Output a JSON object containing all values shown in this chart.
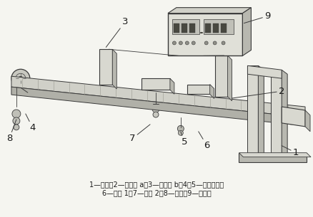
{
  "caption_line1": "1—导轨；2—光电门 a；3—光电门 b；4、5—调节螺钉；",
  "caption_line2": "6—滑块 1；7—滑块 2；8—气源；9—计时器",
  "bg_color": "#f5f5f0",
  "line_color": "#3a3a3a",
  "fill_light": "#d8d8d0",
  "fill_mid": "#b8b8b0",
  "fill_dark": "#888880"
}
